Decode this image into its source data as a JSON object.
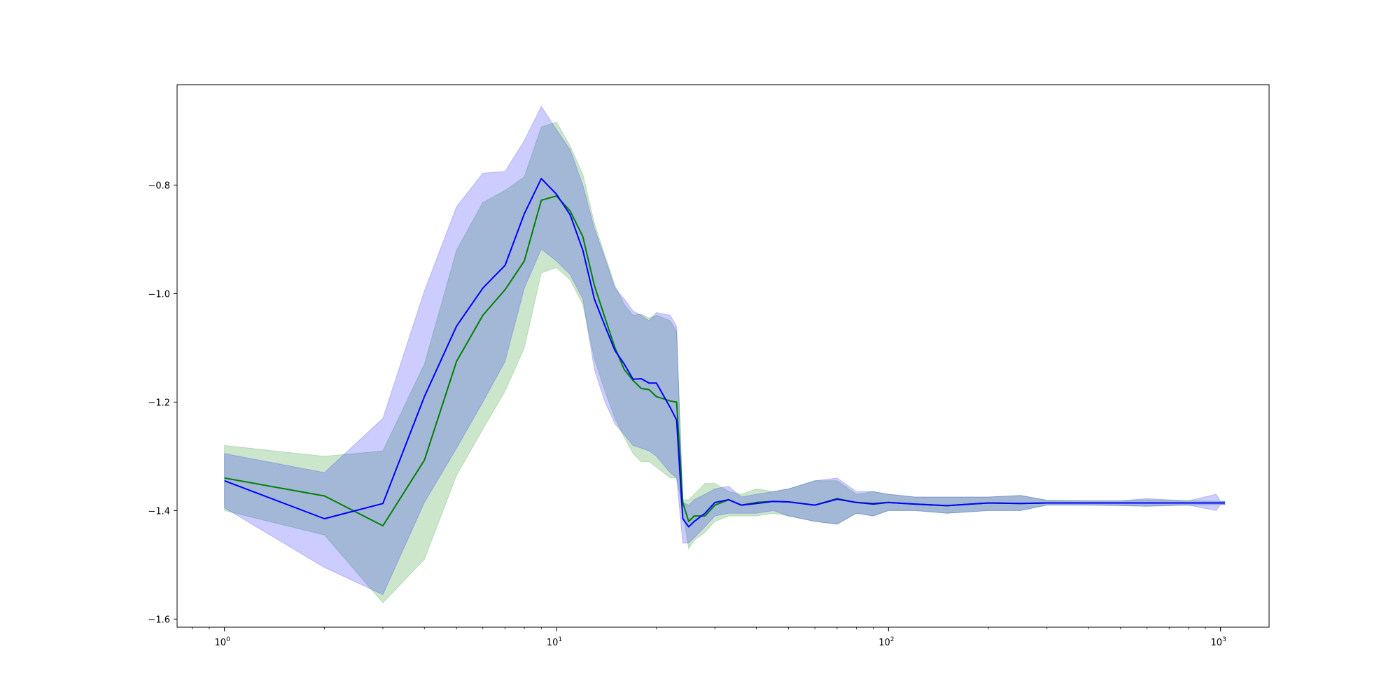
{
  "chart_data": {
    "type": "line",
    "title": "",
    "xlabel": "",
    "ylabel": "",
    "xscale": "log",
    "xlim": [
      0.72,
      1400
    ],
    "ylim": [
      -1.615,
      -0.615
    ],
    "grid": false,
    "y_ticks": [
      {
        "value": -1.6,
        "label": "−1.6"
      },
      {
        "value": -1.4,
        "label": "−1.4"
      },
      {
        "value": -1.2,
        "label": "−1.2"
      },
      {
        "value": -1.0,
        "label": "−1.0"
      },
      {
        "value": -0.8,
        "label": "−0.8"
      }
    ],
    "x_ticks": [
      {
        "value": 1,
        "base": "10",
        "exp": "0"
      },
      {
        "value": 10,
        "base": "10",
        "exp": "1"
      },
      {
        "value": 100,
        "base": "10",
        "exp": "2"
      },
      {
        "value": 1000,
        "base": "10",
        "exp": "3"
      }
    ],
    "series": [
      {
        "color": "#008000",
        "band_color": "#008000",
        "x": [
          1,
          2,
          3,
          4,
          5,
          6,
          7,
          8,
          9,
          10,
          11,
          12,
          13,
          14,
          15,
          16,
          17,
          18,
          19,
          20,
          22,
          23,
          24,
          25,
          26,
          28,
          30,
          33,
          36,
          40,
          45,
          50,
          60,
          70,
          80,
          90,
          100,
          120,
          150,
          200,
          250,
          300,
          400,
          500,
          600,
          800,
          1000,
          1030
        ],
        "y": [
          -1.34,
          -1.373,
          -1.428,
          -1.307,
          -1.125,
          -1.04,
          -0.993,
          -0.94,
          -0.828,
          -0.82,
          -0.848,
          -0.895,
          -0.985,
          -1.045,
          -1.1,
          -1.14,
          -1.16,
          -1.175,
          -1.177,
          -1.19,
          -1.198,
          -1.2,
          -1.385,
          -1.42,
          -1.41,
          -1.41,
          -1.39,
          -1.38,
          -1.39,
          -1.385,
          -1.383,
          -1.384,
          -1.39,
          -1.378,
          -1.385,
          -1.387,
          -1.385,
          -1.388,
          -1.391,
          -1.386,
          -1.387,
          -1.386,
          -1.386,
          -1.386,
          -1.386,
          -1.386,
          -1.386,
          -1.386
        ],
        "upper": [
          -1.28,
          -1.3,
          -1.29,
          -1.13,
          -0.92,
          -0.832,
          -0.81,
          -0.785,
          -0.693,
          -0.684,
          -0.728,
          -0.78,
          -0.87,
          -0.93,
          -0.985,
          -1.02,
          -1.04,
          -1.038,
          -1.045,
          -1.04,
          -1.05,
          -1.07,
          -1.38,
          -1.38,
          -1.37,
          -1.35,
          -1.35,
          -1.365,
          -1.37,
          -1.36,
          -1.365,
          -1.36,
          -1.345,
          -1.345,
          -1.37,
          -1.365,
          -1.37,
          -1.375,
          -1.375,
          -1.375,
          -1.372,
          -1.381,
          -1.382,
          -1.382,
          -1.38,
          -1.382,
          -1.383,
          -1.383
        ],
        "lower": [
          -1.4,
          -1.445,
          -1.57,
          -1.49,
          -1.335,
          -1.25,
          -1.18,
          -1.1,
          -0.962,
          -0.952,
          -0.975,
          -1.02,
          -1.12,
          -1.18,
          -1.23,
          -1.265,
          -1.295,
          -1.31,
          -1.31,
          -1.32,
          -1.34,
          -1.34,
          -1.4,
          -1.47,
          -1.455,
          -1.44,
          -1.42,
          -1.41,
          -1.41,
          -1.41,
          -1.405,
          -1.41,
          -1.42,
          -1.425,
          -1.405,
          -1.41,
          -1.4,
          -1.4,
          -1.405,
          -1.4,
          -1.4,
          -1.39,
          -1.39,
          -1.391,
          -1.392,
          -1.39,
          -1.389,
          -1.389
        ]
      },
      {
        "color": "#0000ff",
        "band_color": "#0000ff",
        "x": [
          1,
          2,
          3,
          4,
          5,
          6,
          7,
          8,
          9,
          10,
          11,
          12,
          13,
          14,
          15,
          16,
          17,
          18,
          19,
          20,
          22,
          23,
          24,
          25,
          26,
          28,
          30,
          33,
          36,
          40,
          45,
          50,
          60,
          70,
          80,
          90,
          100,
          120,
          150,
          200,
          250,
          300,
          400,
          500,
          600,
          800,
          970,
          1000,
          1030
        ],
        "y": [
          -1.345,
          -1.415,
          -1.387,
          -1.19,
          -1.06,
          -0.99,
          -0.948,
          -0.853,
          -0.788,
          -0.817,
          -0.855,
          -0.92,
          -1.01,
          -1.06,
          -1.105,
          -1.13,
          -1.158,
          -1.157,
          -1.165,
          -1.165,
          -1.21,
          -1.233,
          -1.415,
          -1.43,
          -1.42,
          -1.405,
          -1.385,
          -1.38,
          -1.39,
          -1.387,
          -1.383,
          -1.384,
          -1.39,
          -1.379,
          -1.385,
          -1.388,
          -1.385,
          -1.388,
          -1.391,
          -1.386,
          -1.387,
          -1.386,
          -1.386,
          -1.386,
          -1.386,
          -1.386,
          -1.386,
          -1.386,
          -1.386
        ],
        "upper": [
          -1.295,
          -1.33,
          -1.23,
          -0.995,
          -0.84,
          -0.778,
          -0.775,
          -0.718,
          -0.655,
          -0.698,
          -0.735,
          -0.8,
          -0.88,
          -0.935,
          -0.99,
          -1.01,
          -1.032,
          -1.04,
          -1.05,
          -1.035,
          -1.04,
          -1.06,
          -1.385,
          -1.39,
          -1.38,
          -1.37,
          -1.36,
          -1.355,
          -1.375,
          -1.37,
          -1.365,
          -1.36,
          -1.345,
          -1.34,
          -1.365,
          -1.365,
          -1.37,
          -1.375,
          -1.375,
          -1.375,
          -1.372,
          -1.381,
          -1.382,
          -1.382,
          -1.378,
          -1.382,
          -1.37,
          -1.383,
          -1.383
        ],
        "lower": [
          -1.395,
          -1.505,
          -1.555,
          -1.385,
          -1.285,
          -1.2,
          -1.125,
          -0.99,
          -0.918,
          -0.94,
          -0.965,
          -1.01,
          -1.14,
          -1.2,
          -1.24,
          -1.26,
          -1.28,
          -1.285,
          -1.29,
          -1.3,
          -1.33,
          -1.34,
          -1.46,
          -1.46,
          -1.45,
          -1.43,
          -1.41,
          -1.405,
          -1.405,
          -1.405,
          -1.4,
          -1.41,
          -1.42,
          -1.425,
          -1.405,
          -1.41,
          -1.4,
          -1.4,
          -1.405,
          -1.4,
          -1.4,
          -1.39,
          -1.39,
          -1.391,
          -1.392,
          -1.39,
          -1.4,
          -1.389,
          -1.389
        ]
      }
    ]
  }
}
